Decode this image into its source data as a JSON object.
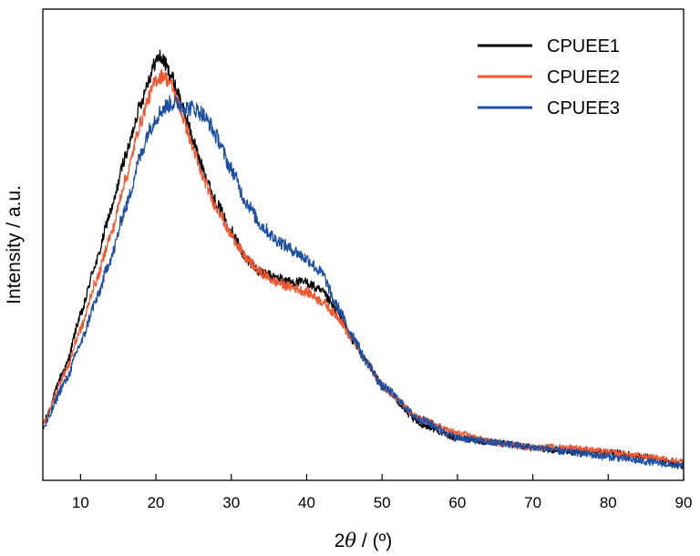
{
  "chart_data": {
    "type": "line",
    "title": "",
    "xlabel_prefix": "2",
    "xlabel_symbol": "θ",
    "xlabel_suffix": " / (º)",
    "ylabel": "Intensity / a.u.",
    "xlim": [
      5,
      90
    ],
    "ylim": [
      0,
      100
    ],
    "y_ticks_shown": false,
    "grid": false,
    "legend_position": "top-right",
    "x_ticks": [
      10,
      20,
      30,
      40,
      50,
      60,
      70,
      80,
      90
    ],
    "x_tick_labels": [
      "10",
      "20",
      "30",
      "40",
      "50",
      "60",
      "70",
      "80",
      "90"
    ],
    "series": [
      {
        "name": "CPUEE1",
        "color": "#000000",
        "noise": 1.0,
        "x": [
          5,
          8,
          10,
          12,
          14,
          16,
          18,
          19,
          20,
          20.5,
          21,
          22,
          23,
          24,
          25,
          26,
          28,
          30,
          32,
          34,
          36,
          38,
          40,
          42,
          44,
          46,
          48,
          50,
          55,
          60,
          65,
          70,
          75,
          80,
          85,
          90
        ],
        "y": [
          12,
          24,
          35,
          46,
          57,
          69,
          80,
          85,
          89,
          90,
          89,
          86,
          82,
          77,
          72,
          67,
          59,
          53,
          47,
          44,
          43,
          42,
          42,
          40,
          36,
          30,
          25,
          20,
          12,
          9,
          8,
          7,
          6,
          6,
          5,
          3
        ]
      },
      {
        "name": "CPUEE2",
        "color": "#f0572e",
        "noise": 1.0,
        "x": [
          5,
          8,
          10,
          12,
          14,
          16,
          18,
          19,
          20,
          21,
          22,
          23,
          24,
          25,
          26,
          28,
          30,
          32,
          34,
          36,
          38,
          40,
          42,
          44,
          46,
          48,
          50,
          55,
          60,
          65,
          70,
          75,
          80,
          85,
          90
        ],
        "y": [
          12,
          23,
          32,
          42,
          52,
          64,
          76,
          81,
          85,
          86,
          84,
          80,
          75,
          70,
          65,
          58,
          52,
          47,
          44,
          42,
          41,
          40,
          38,
          35,
          30,
          25,
          20,
          13,
          10,
          8,
          7,
          7,
          6,
          5,
          4
        ]
      },
      {
        "name": "CPUEE3",
        "color": "#1d4fa3",
        "noise": 1.2,
        "x": [
          5,
          8,
          10,
          12,
          14,
          16,
          18,
          19,
          20,
          21,
          22,
          23,
          24,
          25,
          26,
          27,
          28,
          30,
          32,
          34,
          36,
          38,
          40,
          42,
          44,
          46,
          48,
          50,
          55,
          60,
          65,
          70,
          75,
          80,
          85,
          90
        ],
        "y": [
          11,
          21,
          29,
          38,
          47,
          58,
          69,
          74,
          77,
          79,
          80,
          80,
          79,
          79,
          78,
          76,
          73,
          66,
          59,
          54,
          51,
          49,
          47,
          44,
          37,
          31,
          25,
          20,
          13,
          9,
          8,
          7,
          6,
          5,
          4,
          3
        ]
      }
    ]
  }
}
